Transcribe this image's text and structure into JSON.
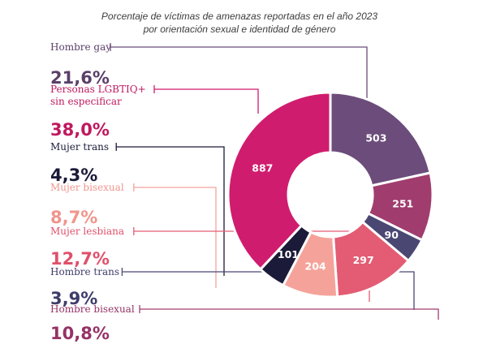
{
  "title": "Porcentaje de víctimas de amenazas reportadas en el año 2023 por orientación sexual e identidad de género",
  "chart_data": {
    "type": "pie",
    "title": "Porcentaje de víctimas de amenazas reportadas en el año 2023 por orientación sexual e identidad de género",
    "slices": [
      {
        "label": "Hombre gay",
        "value": 503,
        "percent": "21,6%",
        "color": "#6b4c7a"
      },
      {
        "label": "Hombre bisexual",
        "value": 251,
        "percent": "10,8%",
        "color": "#a03d6e"
      },
      {
        "label": "Hombre trans",
        "value": 90,
        "percent": "3,9%",
        "color": "#4a4873"
      },
      {
        "label": "Mujer lesbiana",
        "value": 297,
        "percent": "12,7%",
        "color": "#e35c73"
      },
      {
        "label": "Mujer bisexual",
        "value": 204,
        "percent": "8,7%",
        "color": "#f5a39a"
      },
      {
        "label": "Mujer trans",
        "value": 101,
        "percent": "4,3%",
        "color": "#1b1a38"
      },
      {
        "label": "Personas LGBTIQ+ sin especificar",
        "value": 887,
        "percent": "38,0%",
        "color": "#d01c6e"
      }
    ]
  }
}
